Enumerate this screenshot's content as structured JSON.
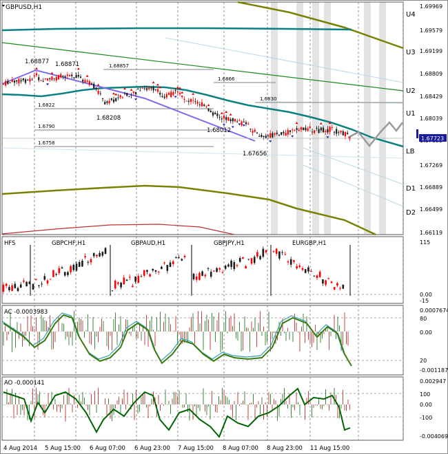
{
  "window": {
    "symbol_title": "GBPUSD,H1"
  },
  "main_price_axis": [
    "1.69969",
    "1.69579",
    "1.69199",
    "1.68809",
    "1.68429",
    "1.68039",
    "1.67659",
    "1.67269",
    "1.66889",
    "1.66499",
    "1.66119"
  ],
  "current_price": "1.67723",
  "pivot_labels": [
    "U4",
    "U3",
    "U2",
    "U1",
    "LB",
    "D1",
    "D2"
  ],
  "annotations": {
    "swing_high_1": "1.68877",
    "swing_high_2": "1.68871",
    "level_68857": "1.68857",
    "level_6866": "1.6866",
    "level_6830": "1.6830",
    "level_6822": "1.6822",
    "swing_low_1": "1.68208",
    "level_6790": "1.6790",
    "swing_low_2": "1.68012",
    "level_6758": "1.6758",
    "swing_low_3": "1.67656"
  },
  "panel_hfs": {
    "label": "HFS",
    "sub_symbols": [
      "GBPCHF,H1",
      "GBPAUD,H1",
      "GBPJPY,H1",
      "EURGBP,H1"
    ],
    "axis": [
      "115",
      "0.00",
      "-15"
    ]
  },
  "panel_ac": {
    "label": "AC -0.0003983",
    "axis": [
      "0.0007674",
      "80",
      "0.00",
      "20",
      "-0.001187"
    ]
  },
  "panel_ao": {
    "label": "AO -0.000141",
    "axis": [
      "0.002947",
      "100",
      "0.00",
      "-100",
      "-0.004069"
    ]
  },
  "time_axis": [
    "4 Aug 2014",
    "5 Aug 15:00",
    "6 Aug 07:00",
    "6 Aug 23:00",
    "7 Aug 15:00",
    "8 Aug 07:00",
    "8 Aug 23:00",
    "11 Aug 15:00"
  ],
  "colors": {
    "bull_candle": "#1a1a1a",
    "bear_candle": "#ff0000",
    "teal_line": "#0a8080",
    "olive_line": "#7a8000",
    "green_line": "#1a8a1a",
    "purple_line": "#7b68ee",
    "dark_green_osc": "#006400"
  }
}
